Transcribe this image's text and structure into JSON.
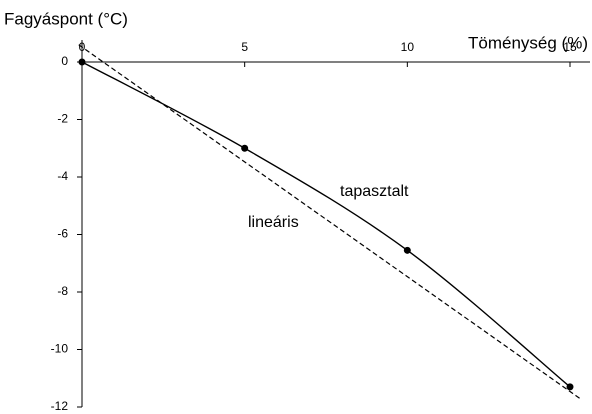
{
  "chart_data": {
    "type": "line",
    "y_label": "Fagyáspont (°C)",
    "x_label": "Töménység (%)",
    "xlim": [
      0,
      15
    ],
    "xticks": [
      0,
      5,
      10,
      15
    ],
    "ylim": [
      -12,
      0
    ],
    "yticks": [
      0,
      -2,
      -4,
      -6,
      -8,
      -10,
      -12
    ],
    "series": [
      {
        "name": "tapasztalt",
        "color": "#000000",
        "style": "solid",
        "markers": true,
        "smooth": true,
        "x": [
          0,
          5,
          10,
          15
        ],
        "values": [
          0,
          -3,
          -6.55,
          -11.3
        ]
      },
      {
        "name": "lineáris",
        "color": "#000000",
        "style": "dashed",
        "markers": false,
        "smooth": false,
        "x": [
          -0.1,
          15.3
        ],
        "values": [
          0.6,
          -11.7
        ]
      }
    ]
  }
}
